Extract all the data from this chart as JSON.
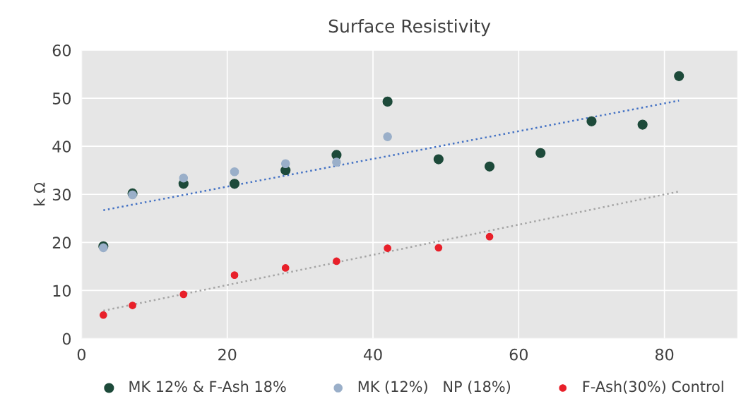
{
  "chart_data": {
    "type": "scatter",
    "title": "Surface Resistivity",
    "ylabel": "k Ω",
    "xlim": [
      0,
      90
    ],
    "ylim": [
      0,
      60
    ],
    "xticks": [
      0,
      20,
      40,
      60,
      80
    ],
    "yticks": [
      0,
      10,
      20,
      30,
      40,
      50,
      60
    ],
    "grid": true,
    "legend": "bottom",
    "marker": "circle",
    "series": [
      {
        "name": "MK 12% & F-Ash 18%",
        "color": "#1d4a3a",
        "x": [
          3,
          7,
          14,
          21,
          28,
          35,
          42,
          49,
          56,
          63,
          70,
          77,
          82
        ],
        "values": [
          19.2,
          30.2,
          32.2,
          32.2,
          35,
          38.2,
          49.3,
          37.3,
          35.8,
          38.6,
          45.2,
          44.5,
          54.6
        ]
      },
      {
        "name": "MK (12%)   NP (18%)",
        "color": "#9aafc9",
        "x": [
          3,
          7,
          14,
          21,
          28,
          35,
          42
        ],
        "values": [
          18.9,
          29.9,
          33.4,
          34.7,
          36.4,
          36.7,
          42
        ]
      },
      {
        "name": "F-Ash(30%) Control",
        "color": "#e8202a",
        "x": [
          3,
          7,
          14,
          21,
          28,
          35,
          42,
          49,
          56
        ],
        "values": [
          4.9,
          6.9,
          9.2,
          13.2,
          14.7,
          16.1,
          18.8,
          18.9,
          21.2
        ]
      },
      {
        "type": "line",
        "marker": "none",
        "line_style": "dotted",
        "color": "#4472c4",
        "x": [
          3,
          82
        ],
        "values": [
          26.7,
          49.5
        ]
      },
      {
        "type": "line",
        "marker": "none",
        "line_style": "dotted",
        "color": "#a5a5a5",
        "x": [
          3,
          82
        ],
        "values": [
          5.8,
          30.6
        ]
      }
    ]
  }
}
